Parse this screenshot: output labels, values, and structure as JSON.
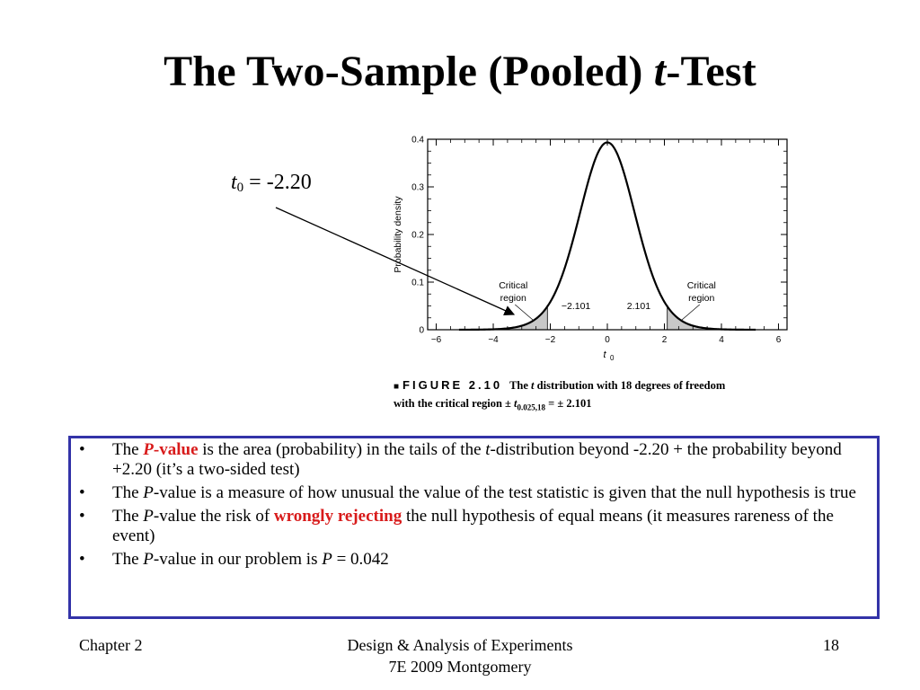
{
  "title": {
    "main": "The Two-Sample (Pooled) ",
    "italic": "t",
    "tail": "-Test"
  },
  "annotation": {
    "var": "t",
    "sub": "0",
    "rest": " = -2.20"
  },
  "figure": {
    "chart_data": {
      "type": "line",
      "title": "",
      "xlabel": "t",
      "xlabel_sub": "0",
      "ylabel": "Probability density",
      "xlim": [
        -6.3,
        6.3
      ],
      "ylim": [
        0,
        0.4
      ],
      "xticks": [
        -6,
        -4,
        -2,
        0,
        2,
        4,
        6
      ],
      "yticks": [
        0,
        0.1,
        0.2,
        0.3,
        0.4
      ],
      "xtick_labels": [
        "−6",
        "−4",
        "−2",
        "0",
        "2",
        "4",
        "6"
      ],
      "ytick_labels": [
        "0",
        "0.1",
        "0.2",
        "0.3",
        "0.4"
      ],
      "distribution": "t",
      "df": 18,
      "critical_value": 2.101,
      "series": [
        {
          "x": [
            -5.2,
            -4,
            -3,
            -2.5,
            -2.101,
            -1.5,
            -1,
            -0.5,
            0,
            0.5,
            1,
            1.5,
            2.101,
            2.5,
            3,
            4,
            5.2
          ],
          "y": [
            0.0001,
            0.0012,
            0.008,
            0.0197,
            0.0438,
            0.1273,
            0.236,
            0.3469,
            0.3939,
            0.3469,
            0.236,
            0.1273,
            0.0438,
            0.0197,
            0.008,
            0.0012,
            0.0001
          ]
        }
      ],
      "annotations": [
        {
          "text_lines": [
            "Critical",
            "region"
          ],
          "side": "left"
        },
        {
          "text_lines": [
            "Critical",
            "region"
          ],
          "side": "right"
        },
        {
          "text": "−2.101"
        },
        {
          "text": "2.101"
        }
      ],
      "grid": false,
      "shading_color": "#c8c8c8",
      "line_color": "#000000"
    }
  },
  "caption": {
    "square": "■",
    "figure_label": "FIGURE 2.10",
    "text_1": "The ",
    "text_t": "t",
    "text_2": " distribution with 18 degrees of freedom",
    "text_3": "with the critical region ± ",
    "sub_t": "t",
    "sub": "0.025,18",
    "text_4": " = ± 2.101"
  },
  "bullets": [
    {
      "pre": "The ",
      "p_italic": "P",
      "red": "-value",
      "post": " is the area (probability) in the tails of the ",
      "ital2": "t",
      "post2": "-distribution beyond -2.20 + the probability beyond +2.20 (it’s a two-sided test)"
    },
    {
      "pre": "The ",
      "p_italic": "P",
      "post": "-value is a measure of how unusual the value of the test statistic is given that the null hypothesis is true"
    },
    {
      "pre": "The ",
      "p_italic": "P",
      "post": "-value the risk of ",
      "red": "wrongly rejecting",
      "post2": " the null hypothesis of equal means (it measures rareness of the event)"
    },
    {
      "pre": "The ",
      "p_italic": "P",
      "post": "-value in our problem is ",
      "ital2": "P",
      "post2": " = 0.042"
    }
  ],
  "bullet_symbol": "•",
  "footer": {
    "left": "Chapter 2",
    "center_line1": "Design & Analysis of Experiments",
    "center_line2": "7E 2009 Montgomery",
    "right": "18"
  },
  "colors": {
    "accent_red": "#d81b1b",
    "box_border": "#3333a8"
  }
}
